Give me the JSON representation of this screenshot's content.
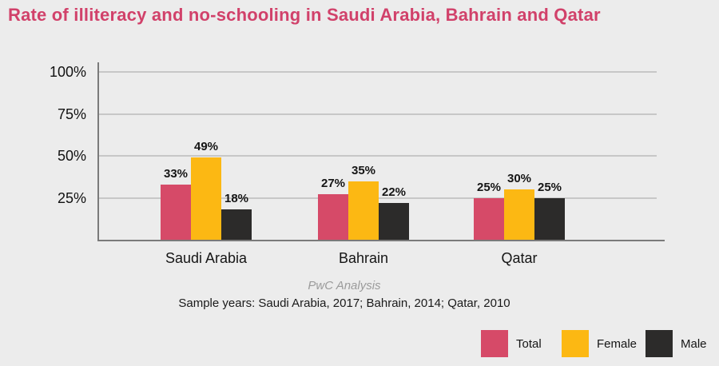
{
  "title": "Rate of illiteracy and no-schooling in Saudi Arabia, Bahrain and Qatar",
  "colors": {
    "background": "#ECECEC",
    "title": "#D1416A",
    "axis": "#7A7A7A",
    "gridline": "#C7C7C7",
    "value_label": "#151515"
  },
  "chart_data": {
    "type": "bar",
    "categories": [
      "Saudi Arabia",
      "Bahrain",
      "Qatar"
    ],
    "series": [
      {
        "name": "Total",
        "color": "#D64A68",
        "values": [
          33,
          27,
          25
        ]
      },
      {
        "name": "Female",
        "color": "#FCB813",
        "values": [
          49,
          35,
          30
        ]
      },
      {
        "name": "Male",
        "color": "#2C2B2A",
        "values": [
          18,
          22,
          25
        ]
      }
    ],
    "value_labels": [
      [
        "33%",
        "27%",
        "25%"
      ],
      [
        "49%",
        "35%",
        "30%"
      ],
      [
        "18%",
        "22%",
        "25%"
      ]
    ],
    "yticks": [
      {
        "label": "100%",
        "value": 100
      },
      {
        "label": "75%",
        "value": 75
      },
      {
        "label": "50%",
        "value": 50
      },
      {
        "label": "25%",
        "value": 25
      }
    ],
    "ylim": [
      0,
      100
    ],
    "grid": true,
    "legend_position": "bottom-right"
  },
  "footer": {
    "source": "PwC Analysis",
    "sample_years": "Sample years: Saudi Arabia, 2017; Bahrain, 2014; Qatar, 2010"
  },
  "legend": {
    "items": [
      {
        "label": "Total",
        "color": "#D64A68"
      },
      {
        "label": "Female",
        "color": "#FCB813"
      },
      {
        "label": "Male",
        "color": "#2C2B2A"
      }
    ]
  }
}
